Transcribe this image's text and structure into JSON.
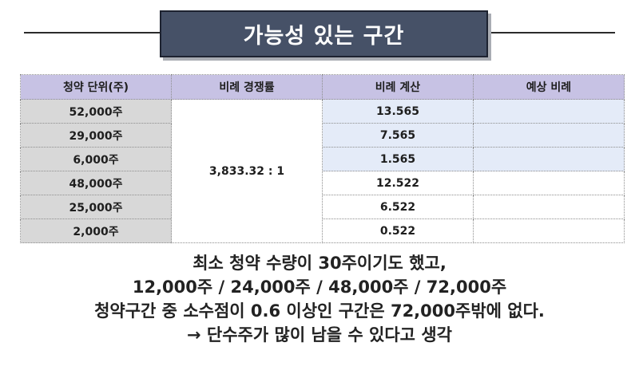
{
  "title": "가능성 있는 구간",
  "table": {
    "headers": [
      "청약 단위(주)",
      "비례 경쟁률",
      "비례 계산",
      "예상 비례"
    ],
    "ratio": "3,833.32 : 1",
    "rows": [
      {
        "unit": "52,000주",
        "calc": "13.565",
        "expect": ""
      },
      {
        "unit": "29,000주",
        "calc": "7.565",
        "expect": ""
      },
      {
        "unit": "6,000주",
        "calc": "1.565",
        "expect": ""
      },
      {
        "unit": "48,000주",
        "calc": "12.522",
        "expect": ""
      },
      {
        "unit": "25,000주",
        "calc": "6.522",
        "expect": ""
      },
      {
        "unit": "2,000주",
        "calc": "0.522",
        "expect": ""
      }
    ],
    "highlight_color": "#e4ebf8",
    "header_color": "#c7c2e4"
  },
  "notes": [
    "최소 청약 수량이 30주이기도 했고,",
    "12,000주 / 24,000주 / 48,000주 / 72,000주",
    "청약구간 중 소수점이 0.6 이상인 구간은 72,000주밖에 없다.",
    "→ 단수주가 많이 남을 수 있다고 생각"
  ]
}
